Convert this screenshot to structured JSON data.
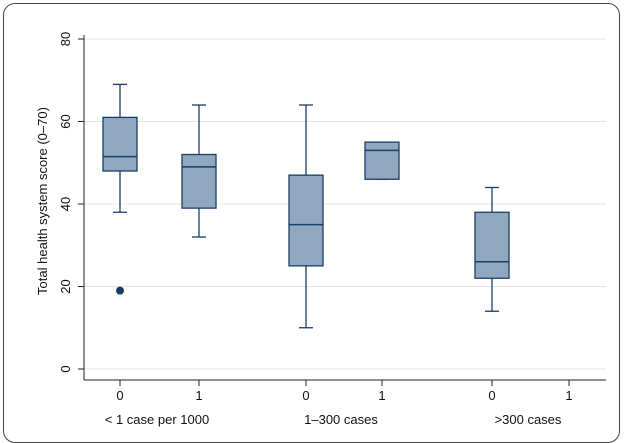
{
  "chart_data": {
    "type": "boxplot",
    "ylabel": "Total health system score (0–70)",
    "ylim": [
      0,
      80
    ],
    "yticks": [
      0,
      20,
      40,
      60,
      80
    ],
    "grid": true,
    "groups": [
      {
        "label": "< 1 case per 1000",
        "subgroups": [
          "0",
          "1"
        ]
      },
      {
        "label": "1–300 cases",
        "subgroups": [
          "0",
          "1"
        ]
      },
      {
        "label": ">300 cases",
        "subgroups": [
          "0",
          "1"
        ]
      }
    ],
    "boxes": [
      {
        "group": "< 1 case per 1000",
        "subgroup": "0",
        "whisker_low": 38,
        "q1": 48,
        "median": 51.5,
        "q3": 61,
        "whisker_high": 69,
        "outliers": [
          19
        ]
      },
      {
        "group": "< 1 case per 1000",
        "subgroup": "1",
        "whisker_low": 32,
        "q1": 39,
        "median": 49,
        "q3": 52,
        "whisker_high": 64,
        "outliers": []
      },
      {
        "group": "1–300 cases",
        "subgroup": "0",
        "whisker_low": 10,
        "q1": 25,
        "median": 35,
        "q3": 47,
        "whisker_high": 64,
        "outliers": []
      },
      {
        "group": "1–300 cases",
        "subgroup": "1",
        "whisker_low": 46,
        "q1": 46,
        "median": 53,
        "q3": 55,
        "whisker_high": 55,
        "outliers": []
      },
      {
        "group": ">300 cases",
        "subgroup": "0",
        "whisker_low": 14,
        "q1": 22,
        "median": 26,
        "q3": 38,
        "whisker_high": 44,
        "outliers": []
      }
    ],
    "colors": {
      "box_fill": "#90a8bf",
      "box_stroke": "#1a3f66",
      "outlier": "#1a3f66",
      "grid": "#e4e4e4",
      "axis": "#222222"
    }
  }
}
